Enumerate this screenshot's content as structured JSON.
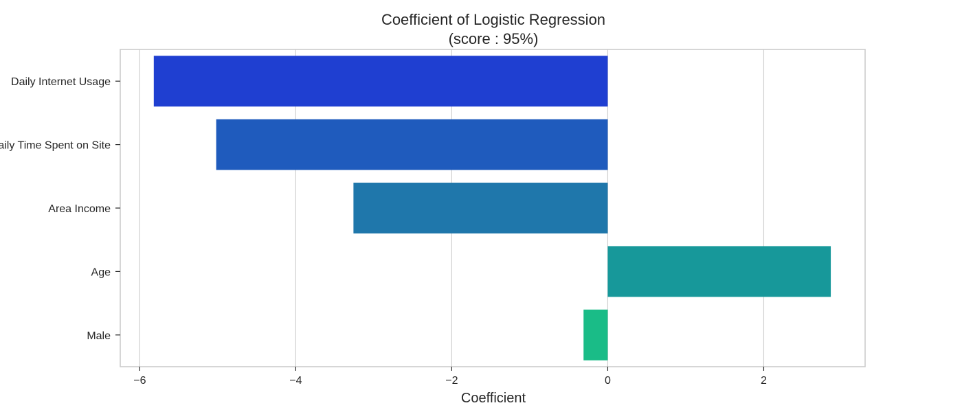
{
  "chart_data": {
    "type": "bar",
    "orientation": "horizontal",
    "title": "Coefficient of Logistic Regression",
    "subtitle": "(score : 95%)",
    "xlabel": "Coefficient",
    "ylabel": "",
    "categories": [
      "Daily Internet Usage",
      "Daily Time Spent on Site",
      "Area Income",
      "Age",
      "Male"
    ],
    "values": [
      -5.82,
      -5.02,
      -3.26,
      2.86,
      -0.31
    ],
    "colors": [
      "#1f3fd1",
      "#1f5bbd",
      "#1f77ab",
      "#17989a",
      "#1abc87"
    ],
    "xlim": [
      -6.25,
      3.3
    ],
    "xticks": [
      -6,
      -4,
      -2,
      0,
      2
    ],
    "xtick_labels": [
      "−6",
      "−4",
      "−2",
      "0",
      "2"
    ],
    "grid": "vertical",
    "legend": "none"
  }
}
